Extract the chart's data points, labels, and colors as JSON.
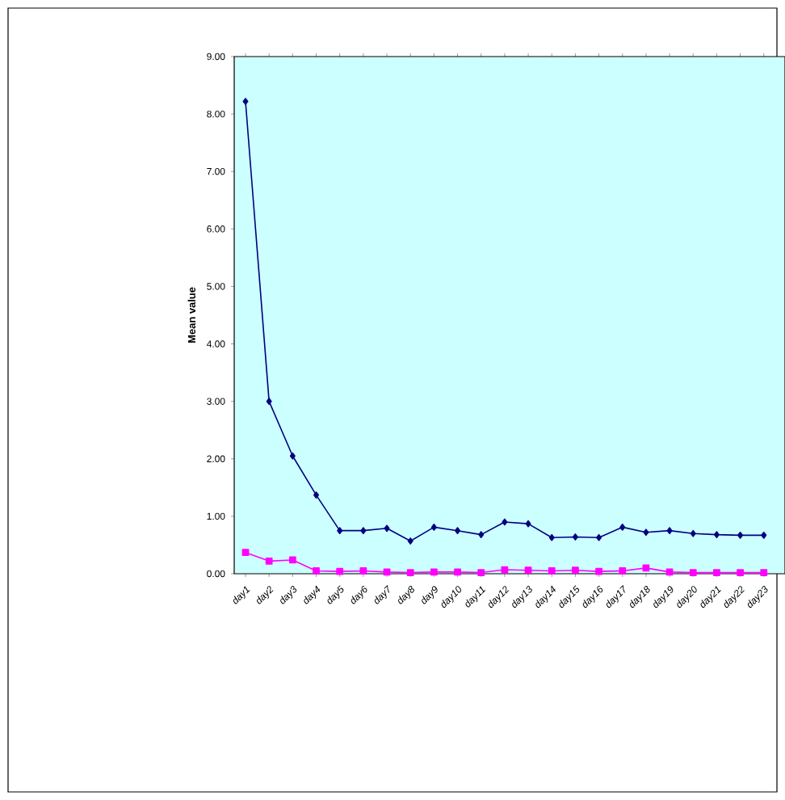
{
  "chart_data": {
    "type": "line",
    "ylabel": "Mean value",
    "categories": [
      "day1",
      "day2",
      "day3",
      "day4",
      "day5",
      "day6",
      "day7",
      "day8",
      "day9",
      "day10",
      "day11",
      "day12",
      "day13",
      "day14",
      "day15",
      "day16",
      "day17",
      "day18",
      "day19",
      "day20",
      "day21",
      "day22",
      "day23"
    ],
    "series": [
      {
        "color": "#000080",
        "marker": "diamond",
        "values": [
          8.22,
          3.0,
          2.05,
          1.37,
          0.75,
          0.75,
          0.79,
          0.57,
          0.81,
          0.75,
          0.68,
          0.9,
          0.87,
          0.63,
          0.64,
          0.63,
          0.81,
          0.72,
          0.75,
          0.7,
          0.68,
          0.67,
          0.67
        ]
      },
      {
        "color": "#ff00ff",
        "marker": "square",
        "values": [
          0.37,
          0.22,
          0.24,
          0.05,
          0.04,
          0.05,
          0.03,
          0.02,
          0.03,
          0.03,
          0.02,
          0.07,
          0.06,
          0.05,
          0.06,
          0.04,
          0.05,
          0.1,
          0.03,
          0.02,
          0.02,
          0.02,
          0.02
        ]
      }
    ],
    "ylim": [
      0,
      9
    ],
    "yticks": [
      {
        "value": 0,
        "label": "0.00"
      },
      {
        "value": 1,
        "label": "1.00"
      },
      {
        "value": 2,
        "label": "2.00"
      },
      {
        "value": 3,
        "label": "3.00"
      },
      {
        "value": 4,
        "label": "4.00"
      },
      {
        "value": 5,
        "label": "5.00"
      },
      {
        "value": 6,
        "label": "6.00"
      },
      {
        "value": 7,
        "label": "7.00"
      },
      {
        "value": 8,
        "label": "8.00"
      },
      {
        "value": 9,
        "label": "9.00"
      }
    ],
    "line_style": "solid"
  }
}
